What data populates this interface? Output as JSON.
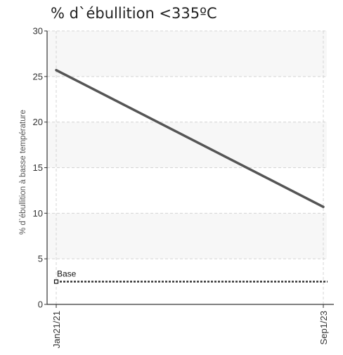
{
  "chart_data": {
    "type": "line",
    "title": "% d`ébullition <335ºC",
    "xlabel": "",
    "ylabel": "% d`ébullition à basse température",
    "categories": [
      "Jan21/21",
      "Sep1/23"
    ],
    "series": [
      {
        "values": [
          25.7,
          10.7
        ],
        "color": "#555555"
      }
    ],
    "reference_line": {
      "label": "Base",
      "value": 2.5,
      "color": "#333333"
    },
    "ylim": [
      0,
      30
    ],
    "yticks": [
      0,
      5,
      10,
      15,
      20,
      25,
      30
    ],
    "grid": true,
    "band_color": "#f7f7f7"
  }
}
